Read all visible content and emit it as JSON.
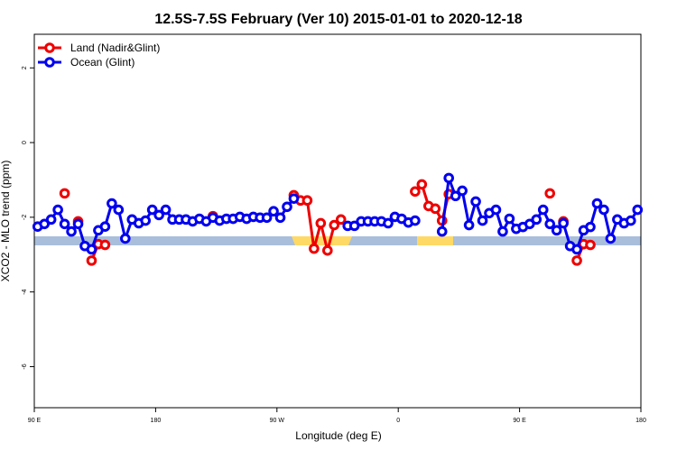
{
  "chart_data": {
    "type": "line",
    "title": "12.5S-7.5S February (Ver 10)   2015-01-01 to 2020-12-18",
    "x_label": "Longitude (deg E)",
    "y_label": "XCO2 - MLO trend (ppm)",
    "xlim": [
      90,
      540
    ],
    "ylim": [
      -7.1,
      2.9
    ],
    "xticks": [
      {
        "value": 90,
        "label": "90 E"
      },
      {
        "value": 180,
        "label": "180"
      },
      {
        "value": 270,
        "label": "90 W"
      },
      {
        "value": 360,
        "label": "0"
      },
      {
        "value": 450,
        "label": "90 E"
      },
      {
        "value": 540,
        "label": "180"
      }
    ],
    "yticks": [
      2,
      0,
      -2,
      -4,
      -6
    ],
    "legend": "top-left",
    "series": [
      {
        "name": "Land (Nadir&Glint)",
        "color": "#ee0000",
        "x": [
          112.5,
          null,
          122.5,
          null,
          132.5,
          137.5,
          142.5,
          null,
          222.5,
          null,
          282.5,
          287.5,
          292.5,
          297.5,
          302.5,
          307.5,
          312.5,
          317.5,
          null,
          372.5,
          377.5,
          382.5,
          387.5,
          392.5,
          397.5,
          null,
          472.5,
          null,
          482.5,
          null,
          492.5,
          497.5,
          502.5
        ],
        "values": [
          -1.36,
          null,
          -2.11,
          null,
          -3.16,
          -2.72,
          -2.74,
          null,
          -1.97,
          null,
          -1.41,
          -1.55,
          -1.55,
          -2.84,
          -2.16,
          -2.89,
          -2.21,
          -2.06,
          null,
          -1.31,
          -1.12,
          -1.7,
          -1.77,
          -2.09,
          -1.38,
          null,
          -1.36,
          null,
          -2.11,
          null,
          -3.16,
          -2.72,
          -2.74
        ]
      },
      {
        "name": "Ocean (Glint)",
        "color": "#0000ee",
        "x": [
          92.5,
          97.5,
          102.5,
          107.5,
          112.5,
          117.5,
          122.5,
          127.5,
          132.5,
          137.5,
          142.5,
          147.5,
          152.5,
          157.5,
          162.5,
          167.5,
          172.5,
          177.5,
          182.5,
          187.5,
          192.5,
          197.5,
          202.5,
          207.5,
          212.5,
          217.5,
          222.5,
          227.5,
          232.5,
          237.5,
          242.5,
          247.5,
          252.5,
          257.5,
          262.5,
          267.5,
          272.5,
          277.5,
          282.5,
          null,
          322.5,
          327.5,
          332.5,
          337.5,
          342.5,
          347.5,
          352.5,
          357.5,
          362.5,
          367.5,
          372.5,
          null,
          392.5,
          397.5,
          402.5,
          407.5,
          412.5,
          417.5,
          422.5,
          427.5,
          432.5,
          437.5,
          442.5,
          447.5,
          452.5,
          457.5,
          462.5,
          467.5,
          472.5,
          477.5,
          482.5,
          487.5,
          492.5,
          497.5,
          502.5,
          507.5,
          512.5,
          517.5,
          522.5,
          527.5,
          532.5,
          537.5
        ],
        "values": [
          -2.25,
          -2.18,
          -2.06,
          -1.8,
          -2.18,
          -2.38,
          -2.18,
          -2.77,
          -2.86,
          -2.35,
          -2.25,
          -1.63,
          -1.8,
          -2.57,
          -2.06,
          -2.16,
          -2.09,
          -1.8,
          -1.94,
          -1.8,
          -2.06,
          -2.06,
          -2.06,
          -2.11,
          -2.04,
          -2.11,
          -2.01,
          -2.09,
          -2.04,
          -2.04,
          -1.99,
          -2.04,
          -1.99,
          -2.01,
          -2.01,
          -1.84,
          -2.01,
          -1.72,
          -1.5,
          null,
          -2.23,
          -2.23,
          -2.11,
          -2.11,
          -2.11,
          -2.11,
          -2.16,
          -1.99,
          -2.04,
          -2.14,
          -2.09,
          null,
          -2.38,
          -0.95,
          -1.43,
          -1.29,
          -2.21,
          -1.58,
          -2.09,
          -1.89,
          -1.8,
          -2.38,
          -2.04,
          -2.31,
          -2.26,
          -2.18,
          -2.06,
          -1.8,
          -2.18,
          -2.35,
          -2.16,
          -2.77,
          -2.86,
          -2.35,
          -2.26,
          -1.63,
          -1.8,
          -2.57,
          -2.06,
          -2.16,
          -2.09,
          -1.8
        ]
      }
    ]
  }
}
